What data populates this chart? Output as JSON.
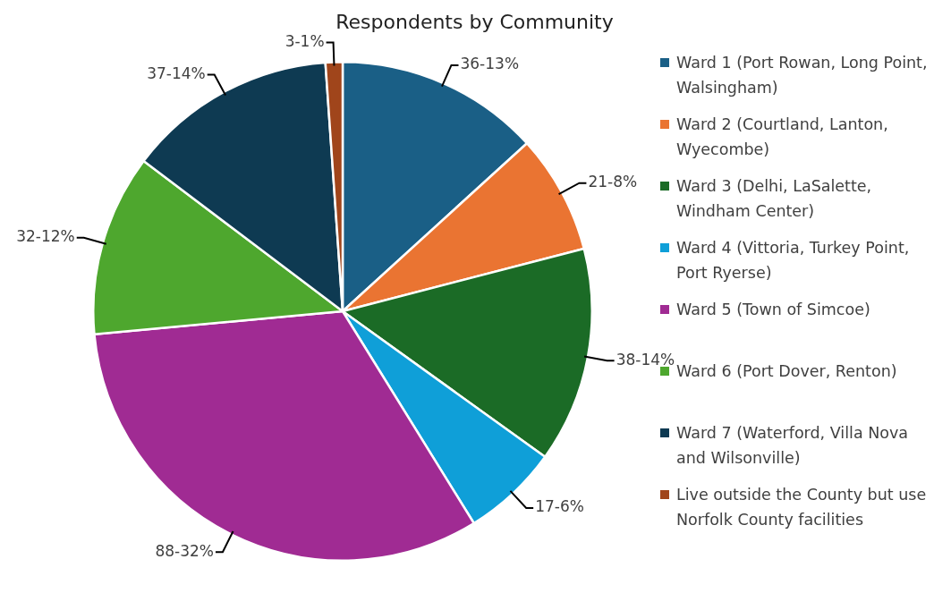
{
  "chart_data": {
    "type": "pie",
    "title": "Respondents by Community",
    "categories": [
      "Ward 1 (Port Rowan, Long Point, Walsingham)",
      "Ward 2 (Courtland, Lanton, Wyecombe)",
      "Ward 3 (Delhi, LaSalette, Windham Center)",
      "Ward 4 (Vittoria, Turkey Point, Port Ryerse)",
      "Ward 5 (Town of Simcoe)",
      "Ward 6 (Port Dover, Renton)",
      "Ward 7 (Waterford, Villa Nova and Wilsonville)",
      "Live outside the County but use Norfolk County facilities"
    ],
    "values": [
      36,
      21,
      38,
      17,
      88,
      32,
      37,
      3
    ],
    "colors": [
      "#1a5f86",
      "#ea7432",
      "#1b6b26",
      "#0f9fd8",
      "#a02b93",
      "#4ea72e",
      "#0e3a52",
      "#a0451b"
    ],
    "value_labels": [
      "36-13%",
      "21-8%",
      "38-14%",
      "17-6%",
      "88-32%",
      "32-12%",
      "37-14%",
      "3-1%"
    ],
    "legend": "right"
  }
}
